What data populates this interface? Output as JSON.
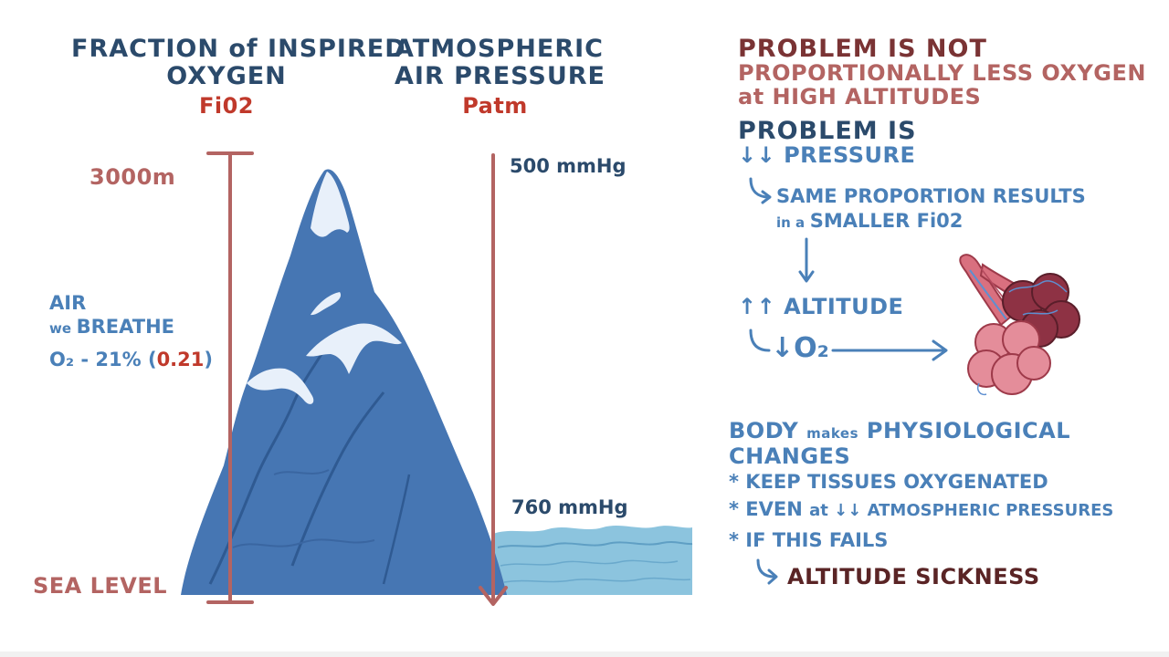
{
  "left": {
    "fio2_title_line1": "FRACTION of INSPIRED",
    "fio2_title_line2": "OXYGEN",
    "fio2_symbol": "Fi02",
    "patm_title_line1": "ATMOSPHERIC",
    "patm_title_line2": "AIR PRESSURE",
    "patm_symbol": "Patm",
    "altitude_top": "3000m",
    "altitude_bottom": "SEA LEVEL",
    "pressure_top": "500 mmHg",
    "pressure_bottom": "760 mmHg",
    "air_line1": "AIR",
    "air_line2_prefix": "we",
    "air_line2_main": "BREATHE",
    "o2_formula_prefix": "O₂ - 21% (",
    "o2_fraction": "0.21",
    "o2_formula_suffix": ")"
  },
  "right": {
    "problem_not_heading": "PROBLEM IS NOT",
    "problem_not_line2": "PROPORTIONALLY LESS OXYGEN",
    "problem_not_line3": "at HIGH ALTITUDES",
    "problem_is_heading": "PROBLEM IS",
    "down_arrows": "↓↓",
    "pressure_label": "PRESSURE",
    "same_proportion_line1": "SAME PROPORTION RESULTS",
    "same_proportion_line2_prefix": "in a",
    "same_proportion_line2_main": "SMALLER  Fi02",
    "up_arrows": "↑↑",
    "altitude_label": "ALTITUDE",
    "o2_down": "↓O₂",
    "body_line1_a": "BODY",
    "body_line1_b": "makes",
    "body_line1_c": "PHYSIOLOGICAL",
    "body_line2": "CHANGES",
    "bullet": "*",
    "bullet1": "KEEP TISSUES OXYGENATED",
    "bullet2_a": "EVEN",
    "bullet2_b": "at ↓↓ ATMOSPHERIC PRESSURES",
    "bullet3": "IF THIS FAILS",
    "result": "ALTITUDE SICKNESS"
  },
  "colors": {
    "navy": "#2b4a6b",
    "blue": "#4a80b8",
    "red": "#c0392b",
    "rose": "#b36462",
    "mountain": "#4676b3",
    "water": "#8cc4de"
  },
  "icons": [
    "mountain-illustration",
    "sea-water",
    "alveoli-illustration",
    "altitude-scale",
    "pressure-arrow"
  ]
}
